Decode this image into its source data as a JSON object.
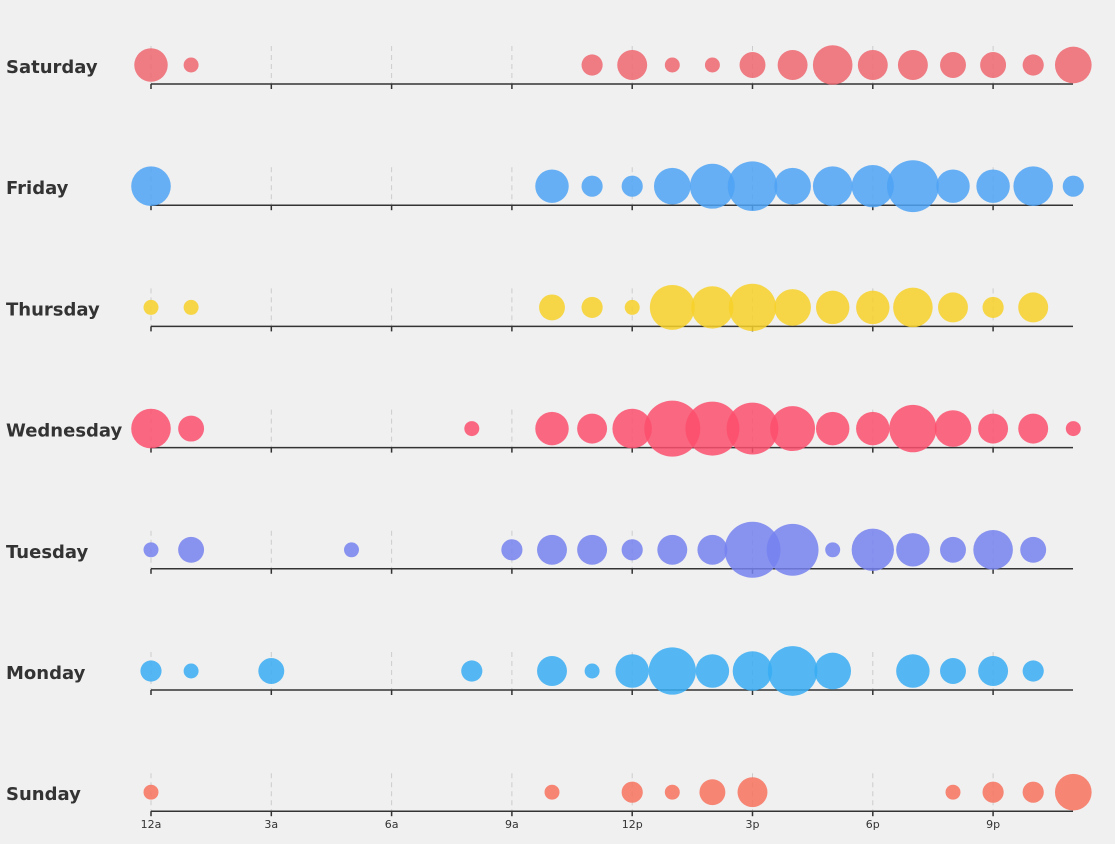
{
  "chart_data": {
    "type": "scatter",
    "title": "",
    "hours": [
      "12a",
      "1a",
      "2a",
      "3a",
      "4a",
      "5a",
      "6a",
      "7a",
      "8a",
      "9a",
      "10a",
      "11a",
      "12p",
      "1p",
      "2p",
      "3p",
      "4p",
      "5p",
      "6p",
      "7p",
      "8p",
      "9p",
      "10p",
      "11p"
    ],
    "tick_labels": [
      "12a",
      "3a",
      "6a",
      "9a",
      "12p",
      "3p",
      "6p",
      "9p"
    ],
    "grid": true,
    "series": [
      {
        "name": "Saturday",
        "color": "#ee6670",
        "values": [
          5,
          1,
          0,
          0,
          0,
          0,
          0,
          0,
          0,
          0,
          0,
          2,
          4,
          1,
          1,
          3,
          4,
          7,
          4,
          4,
          3,
          3,
          2,
          6
        ]
      },
      {
        "name": "Friday",
        "color": "#4fa3f5",
        "values": [
          7,
          0,
          0,
          0,
          0,
          0,
          0,
          0,
          0,
          0,
          5,
          2,
          2,
          6,
          9,
          11,
          6,
          7,
          8,
          12,
          5,
          5,
          7,
          2
        ]
      },
      {
        "name": "Thursday",
        "color": "#f7d129",
        "values": [
          1,
          1,
          0,
          0,
          0,
          0,
          0,
          0,
          0,
          0,
          3,
          2,
          1,
          9,
          8,
          10,
          6,
          5,
          5,
          7,
          4,
          2,
          4,
          0
        ]
      },
      {
        "name": "Wednesday",
        "color": "#fb4f6d",
        "values": [
          7,
          3,
          0,
          0,
          0,
          0,
          0,
          0,
          1,
          0,
          5,
          4,
          7,
          14,
          13,
          12,
          9,
          5,
          5,
          10,
          6,
          4,
          4,
          1
        ]
      },
      {
        "name": "Tuesday",
        "color": "#7681ef",
        "values": [
          1,
          3,
          0,
          0,
          0,
          1,
          0,
          0,
          0,
          2,
          4,
          4,
          2,
          4,
          4,
          14,
          12,
          1,
          8,
          5,
          3,
          7,
          3,
          0
        ]
      },
      {
        "name": "Monday",
        "color": "#38adf3",
        "values": [
          2,
          1,
          0,
          3,
          0,
          0,
          0,
          0,
          2,
          0,
          4,
          1,
          5,
          10,
          5,
          7,
          11,
          6,
          0,
          5,
          3,
          4,
          2,
          0
        ]
      },
      {
        "name": "Sunday",
        "color": "#f7725e",
        "values": [
          1,
          0,
          0,
          0,
          0,
          0,
          0,
          0,
          0,
          0,
          1,
          0,
          2,
          1,
          3,
          4,
          0,
          0,
          0,
          0,
          1,
          2,
          2,
          6
        ]
      }
    ]
  }
}
